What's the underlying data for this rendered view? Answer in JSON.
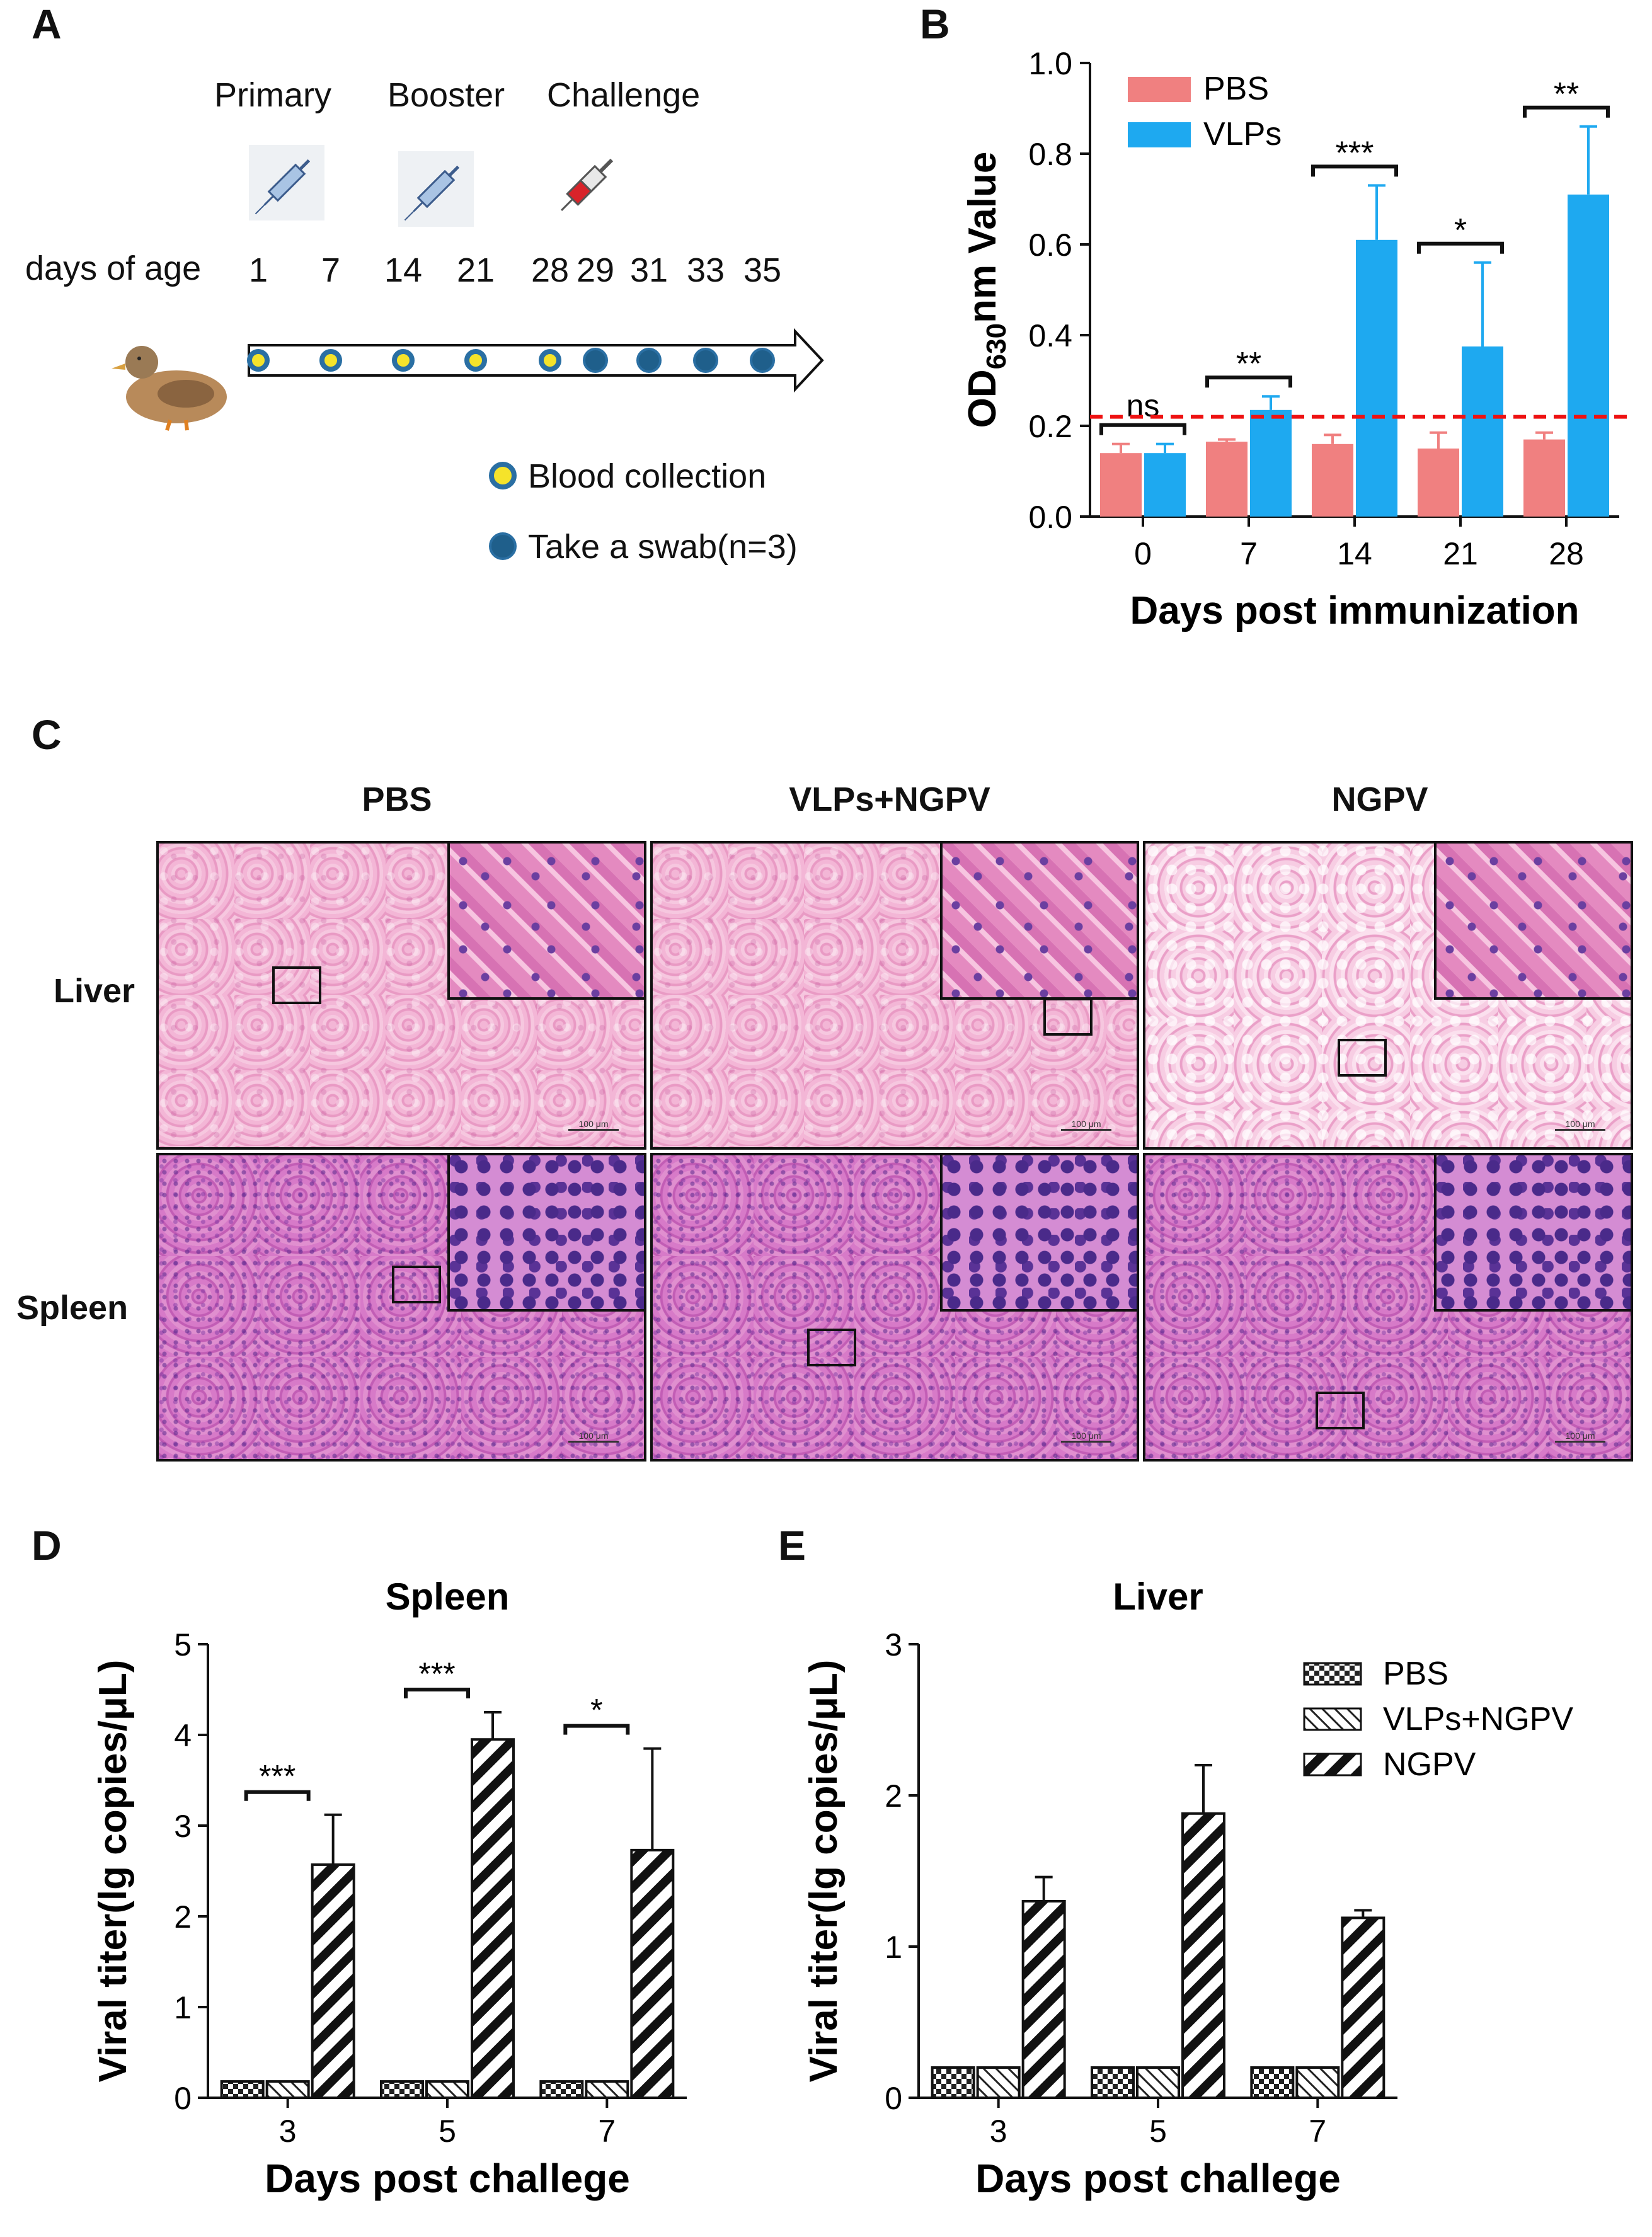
{
  "panel_letters": {
    "a": "A",
    "b": "B",
    "c": "C",
    "d": "D",
    "e": "E"
  },
  "panelA": {
    "events": [
      "Primary",
      "Booster",
      "Challenge"
    ],
    "days_label": "days of age",
    "days": [
      "1",
      "7",
      "14",
      "21",
      "28",
      "29",
      "31",
      "33",
      "35"
    ],
    "legend": [
      "Blood collection",
      "Take a swab(n=3)"
    ],
    "icons": [
      "syringe-icon",
      "syringe-icon",
      "syringe-red-icon",
      "duck-icon"
    ],
    "colors": {
      "blood": "#f5e32a",
      "swab": "#1f5f8b",
      "ring": "#2a6fa3"
    }
  },
  "panelC": {
    "columns": [
      "PBS",
      "VLPs+NGPV",
      "NGPV"
    ],
    "rows": [
      "Liver",
      "Spleen"
    ],
    "scalebar_text": "100 μm"
  },
  "chart_data": [
    {
      "id": "B",
      "type": "bar",
      "title": "",
      "xlabel": "Days post immunization",
      "ylabel_main": "OD",
      "ylabel_sub": "630",
      "ylabel_rest": "nm Value",
      "ylim": [
        0,
        1.0
      ],
      "yticks": [
        "0.0",
        "0.2",
        "0.4",
        "0.6",
        "0.8",
        "1.0"
      ],
      "categories": [
        "0",
        "7",
        "14",
        "21",
        "28"
      ],
      "series": [
        {
          "name": "PBS",
          "color": "#f08080",
          "values": [
            0.14,
            0.165,
            0.16,
            0.15,
            0.17
          ],
          "errors": [
            0.02,
            0.005,
            0.02,
            0.035,
            0.015
          ]
        },
        {
          "name": "VLPs",
          "color": "#1ea9f0",
          "values": [
            0.14,
            0.235,
            0.61,
            0.375,
            0.71
          ],
          "errors": [
            0.02,
            0.03,
            0.12,
            0.185,
            0.15
          ]
        }
      ],
      "cutoff": 0.22,
      "cutoff_color": "#e11",
      "significance": [
        "ns",
        "**",
        "***",
        "*",
        "**"
      ],
      "legend": [
        "PBS",
        "VLPs"
      ]
    },
    {
      "id": "D",
      "type": "bar",
      "title": "Spleen",
      "xlabel": "Days post challege",
      "ylabel": "Viral titer(lg copies/μL)",
      "ylim": [
        0,
        5
      ],
      "yticks": [
        "0",
        "1",
        "2",
        "3",
        "4",
        "5"
      ],
      "categories": [
        "3",
        "5",
        "7"
      ],
      "series": [
        {
          "name": "PBS",
          "values": [
            0.18,
            0.18,
            0.18
          ],
          "errors": [
            0,
            0,
            0
          ]
        },
        {
          "name": "VLPs+NGPV",
          "values": [
            0.18,
            0.18,
            0.18
          ],
          "errors": [
            0,
            0,
            0
          ]
        },
        {
          "name": "NGPV",
          "values": [
            2.57,
            3.95,
            2.73
          ],
          "errors": [
            0.55,
            0.3,
            1.12
          ]
        }
      ],
      "significance": [
        "***",
        "***",
        "*"
      ]
    },
    {
      "id": "E",
      "type": "bar",
      "title": "Liver",
      "xlabel": "Days post challege",
      "ylabel": "Viral titer(lg copies/μL)",
      "ylim": [
        0,
        3
      ],
      "yticks": [
        "0",
        "1",
        "2",
        "3"
      ],
      "categories": [
        "3",
        "5",
        "7"
      ],
      "series": [
        {
          "name": "PBS",
          "values": [
            0.2,
            0.2,
            0.2
          ],
          "errors": [
            0,
            0,
            0
          ]
        },
        {
          "name": "VLPs+NGPV",
          "values": [
            0.2,
            0.2,
            0.2
          ],
          "errors": [
            0,
            0,
            0
          ]
        },
        {
          "name": "NGPV",
          "values": [
            1.3,
            1.88,
            1.19
          ],
          "errors": [
            0.16,
            0.32,
            0.05
          ]
        }
      ],
      "legend": [
        "PBS",
        "VLPs+NGPV",
        "NGPV"
      ]
    }
  ]
}
